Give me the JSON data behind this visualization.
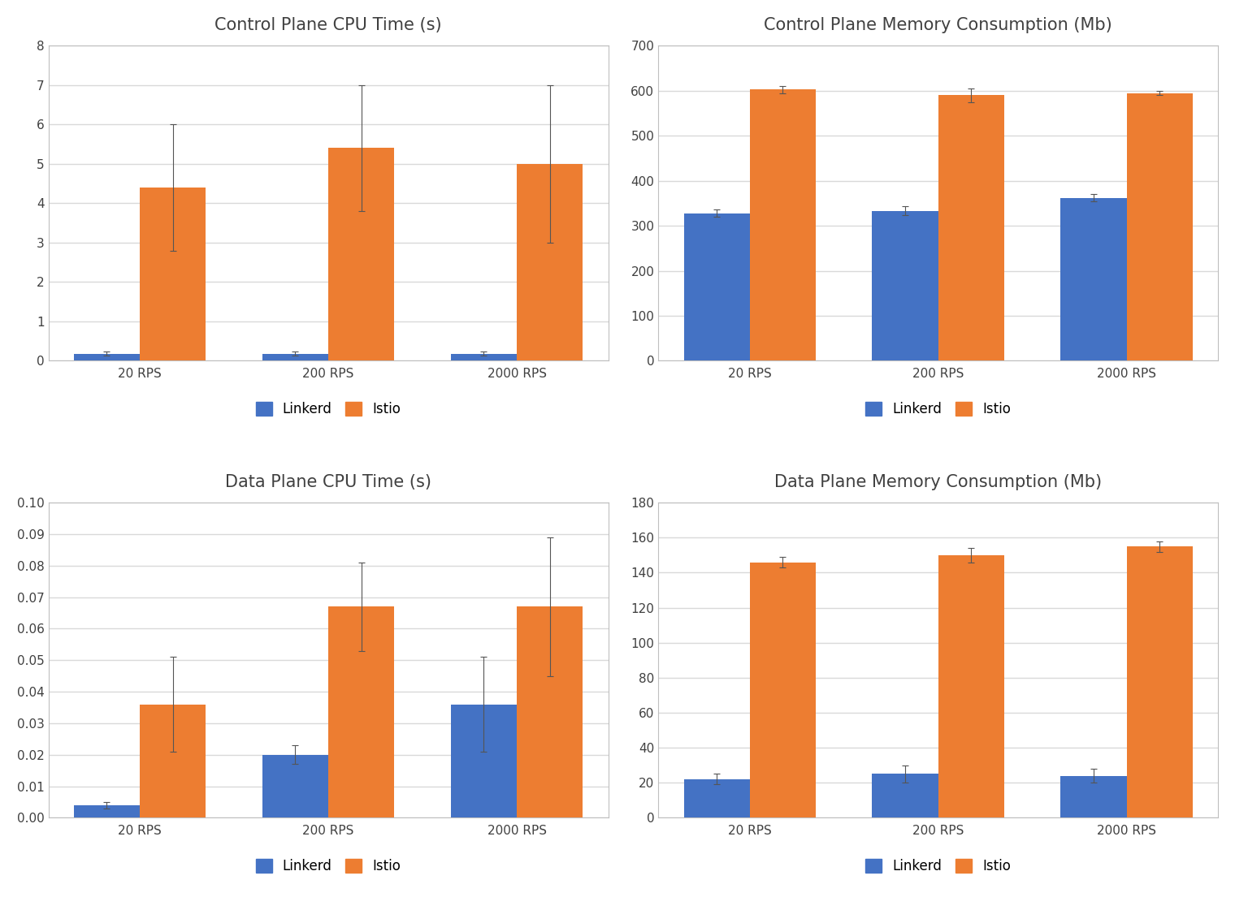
{
  "subplots": [
    {
      "title": "Control Plane CPU Time (s)",
      "categories": [
        "20 RPS",
        "200 RPS",
        "2000 RPS"
      ],
      "linkerd_values": [
        0.18,
        0.18,
        0.18
      ],
      "istio_values": [
        4.4,
        5.4,
        5.0
      ],
      "linkerd_errors": [
        0.05,
        0.05,
        0.05
      ],
      "istio_errors": [
        1.6,
        1.6,
        2.0
      ],
      "ylim": [
        0,
        8
      ],
      "yticks": [
        0,
        1,
        2,
        3,
        4,
        5,
        6,
        7,
        8
      ]
    },
    {
      "title": "Control Plane Memory Consumption (Mb)",
      "categories": [
        "20 RPS",
        "200 RPS",
        "2000 RPS"
      ],
      "linkerd_values": [
        328,
        333,
        362
      ],
      "istio_values": [
        603,
        590,
        595
      ],
      "linkerd_errors": [
        8,
        10,
        8
      ],
      "istio_errors": [
        8,
        15,
        5
      ],
      "ylim": [
        0,
        700
      ],
      "yticks": [
        0,
        100,
        200,
        300,
        400,
        500,
        600,
        700
      ]
    },
    {
      "title": "Data Plane CPU Time (s)",
      "categories": [
        "20 RPS",
        "200 RPS",
        "2000 RPS"
      ],
      "linkerd_values": [
        0.004,
        0.02,
        0.036
      ],
      "istio_values": [
        0.036,
        0.067,
        0.067
      ],
      "linkerd_errors": [
        0.001,
        0.003,
        0.015
      ],
      "istio_errors": [
        0.015,
        0.014,
        0.022
      ],
      "ylim": [
        0,
        0.1
      ],
      "yticks": [
        0,
        0.01,
        0.02,
        0.03,
        0.04,
        0.05,
        0.06,
        0.07,
        0.08,
        0.09,
        0.1
      ]
    },
    {
      "title": "Data Plane Memory Consumption (Mb)",
      "categories": [
        "20 RPS",
        "200 RPS",
        "2000 RPS"
      ],
      "linkerd_values": [
        22,
        25,
        24
      ],
      "istio_values": [
        146,
        150,
        155
      ],
      "linkerd_errors": [
        3,
        5,
        4
      ],
      "istio_errors": [
        3,
        4,
        3
      ],
      "ylim": [
        0,
        180
      ],
      "yticks": [
        0,
        20,
        40,
        60,
        80,
        100,
        120,
        140,
        160,
        180
      ]
    }
  ],
  "linkerd_color": "#4472C4",
  "istio_color": "#ED7D31",
  "plot_bg_color": "#FFFFFF",
  "fig_bg_color": "#FFFFFF",
  "grid_color": "#D9D9D9",
  "border_color": "#BFBFBF",
  "bar_width": 0.35,
  "legend_labels": [
    "Linkerd",
    "Istio"
  ],
  "title_fontsize": 15,
  "tick_fontsize": 11,
  "legend_fontsize": 12
}
